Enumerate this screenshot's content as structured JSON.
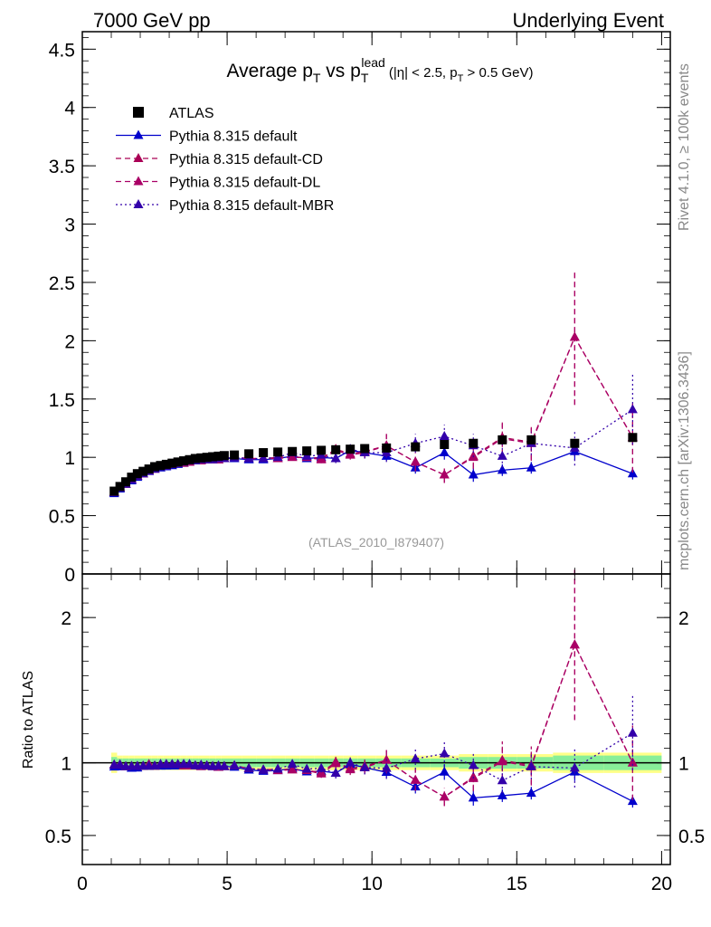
{
  "header": {
    "left": "7000 GeV pp",
    "right": "Underlying Event"
  },
  "title": {
    "prefix": "Average p",
    "sub1": "T",
    "vs": " vs p",
    "sub2": "T",
    "sup2": "lead",
    "cut_a": "(|η| < 2.5, p",
    "cut_sub": "T",
    "cut_b": " > 0.5 GeV)"
  },
  "side_right_top": "Rivet 4.1.0, ≥ 100k events",
  "side_right_bottom": "mcplots.cern.ch [arXiv:1306.3436]",
  "analysis_label": "(ATLAS_2010_I879407)",
  "ratio_ylabel": "Ratio to ATLAS",
  "colors": {
    "data": "#000000",
    "default": "#0000cc",
    "cd": "#aa0055",
    "dl": "#aa0066",
    "mbr": "#3300aa",
    "band_outer": "#ffff88",
    "band_inner": "#88ee99"
  },
  "chart_data": {
    "type": "scatter",
    "xlim": [
      0,
      20.3
    ],
    "main": {
      "ylim": [
        0,
        4.65
      ],
      "yticks": [
        0,
        0.5,
        1,
        1.5,
        2,
        2.5,
        3,
        3.5,
        4,
        4.5
      ],
      "ytick_labels": [
        "0",
        "0.5",
        "1",
        "1.5",
        "2",
        "2.5",
        "3",
        "3.5",
        "4",
        "4.5"
      ]
    },
    "ratio": {
      "ylim": [
        0.3,
        2.3
      ],
      "yticks": [
        0.5,
        1,
        2
      ],
      "ytick_labels": [
        "0.5",
        "1",
        "2"
      ]
    },
    "xticks": [
      0,
      5,
      10,
      15,
      20
    ],
    "xtick_labels": [
      "0",
      "5",
      "10",
      "15",
      "20"
    ],
    "legend": [
      "ATLAS",
      "Pythia 8.315 default",
      "Pythia 8.315 default-CD",
      "Pythia 8.315 default-DL",
      "Pythia 8.315 default-MBR"
    ],
    "x": [
      1.1,
      1.3,
      1.5,
      1.7,
      1.9,
      2.1,
      2.3,
      2.5,
      2.7,
      2.9,
      3.1,
      3.3,
      3.5,
      3.7,
      3.9,
      4.1,
      4.3,
      4.5,
      4.7,
      4.9,
      5.25,
      5.75,
      6.25,
      6.75,
      7.25,
      7.75,
      8.25,
      8.75,
      9.25,
      9.75,
      10.5,
      11.5,
      12.5,
      13.5,
      14.5,
      15.5,
      17.0,
      19.0
    ],
    "atlas": [
      0.71,
      0.75,
      0.79,
      0.83,
      0.86,
      0.88,
      0.9,
      0.92,
      0.93,
      0.94,
      0.95,
      0.96,
      0.97,
      0.98,
      0.99,
      0.995,
      1.0,
      1.005,
      1.01,
      1.015,
      1.02,
      1.03,
      1.04,
      1.045,
      1.05,
      1.055,
      1.06,
      1.065,
      1.07,
      1.075,
      1.08,
      1.09,
      1.11,
      1.12,
      1.15,
      1.15,
      1.12,
      1.17
    ],
    "series": [
      {
        "name": "Pythia 8.315 default",
        "key": "default",
        "style": "solid",
        "values": [
          0.69,
          0.73,
          0.77,
          0.8,
          0.83,
          0.86,
          0.88,
          0.9,
          0.91,
          0.92,
          0.93,
          0.94,
          0.95,
          0.96,
          0.97,
          0.97,
          0.98,
          0.98,
          0.98,
          0.99,
          0.99,
          0.98,
          0.98,
          0.99,
          1.01,
          0.99,
          1.0,
          0.99,
          1.06,
          1.04,
          1.01,
          0.91,
          1.04,
          0.85,
          0.89,
          0.91,
          1.05,
          0.86
        ],
        "errors": [
          0.01,
          0.01,
          0.01,
          0.01,
          0.01,
          0.01,
          0.01,
          0.01,
          0.01,
          0.01,
          0.01,
          0.01,
          0.01,
          0.01,
          0.01,
          0.01,
          0.01,
          0.01,
          0.01,
          0.01,
          0.01,
          0.01,
          0.01,
          0.01,
          0.02,
          0.02,
          0.02,
          0.03,
          0.03,
          0.03,
          0.04,
          0.05,
          0.06,
          0.06,
          0.05,
          0.05,
          0.07,
          0.05
        ]
      },
      {
        "name": "Pythia 8.315 default-CD",
        "key": "cd",
        "style": "dashed",
        "values": [
          0.7,
          0.74,
          0.77,
          0.81,
          0.84,
          0.86,
          0.89,
          0.9,
          0.92,
          0.93,
          0.94,
          0.95,
          0.95,
          0.96,
          0.97,
          0.98,
          0.98,
          0.98,
          0.98,
          0.99,
          1.0,
          0.99,
          0.99,
          1.0,
          1.0,
          1.0,
          0.99,
          1.07,
          1.03,
          1.05,
          1.1,
          0.96,
          0.85,
          1.01,
          1.17,
          1.13,
          2.03,
          1.17
        ],
        "errors": [
          0.01,
          0.01,
          0.01,
          0.01,
          0.01,
          0.01,
          0.01,
          0.01,
          0.01,
          0.01,
          0.01,
          0.01,
          0.01,
          0.01,
          0.01,
          0.01,
          0.01,
          0.01,
          0.01,
          0.01,
          0.01,
          0.01,
          0.01,
          0.02,
          0.02,
          0.02,
          0.03,
          0.04,
          0.04,
          0.05,
          0.1,
          0.08,
          0.07,
          0.1,
          0.15,
          0.15,
          0.58,
          0.3
        ]
      },
      {
        "name": "Pythia 8.315 default-DL",
        "key": "dl",
        "style": "dashed",
        "values": [
          0.7,
          0.74,
          0.77,
          0.81,
          0.84,
          0.86,
          0.89,
          0.9,
          0.92,
          0.93,
          0.94,
          0.95,
          0.96,
          0.96,
          0.97,
          0.97,
          0.98,
          0.98,
          0.98,
          0.99,
          1.0,
          0.99,
          0.99,
          0.99,
          1.0,
          1.0,
          0.98,
          1.06,
          1.02,
          1.04,
          1.1,
          0.96,
          0.85,
          1.0,
          1.16,
          1.12,
          2.03,
          1.17
        ],
        "errors": [
          0.01,
          0.01,
          0.01,
          0.01,
          0.01,
          0.01,
          0.01,
          0.01,
          0.01,
          0.01,
          0.01,
          0.01,
          0.01,
          0.01,
          0.01,
          0.01,
          0.01,
          0.01,
          0.01,
          0.01,
          0.01,
          0.01,
          0.01,
          0.02,
          0.02,
          0.02,
          0.03,
          0.04,
          0.04,
          0.05,
          0.1,
          0.08,
          0.07,
          0.1,
          0.15,
          0.15,
          0.58,
          0.3
        ]
      },
      {
        "name": "Pythia 8.315 default-MBR",
        "key": "mbr",
        "style": "dotted",
        "values": [
          0.7,
          0.74,
          0.77,
          0.81,
          0.84,
          0.86,
          0.88,
          0.9,
          0.92,
          0.93,
          0.94,
          0.95,
          0.96,
          0.97,
          0.97,
          0.98,
          0.98,
          0.98,
          0.99,
          0.99,
          1.0,
          0.99,
          0.99,
          1.0,
          1.04,
          1.01,
          1.02,
          0.99,
          1.07,
          1.04,
          1.04,
          1.12,
          1.18,
          1.1,
          1.01,
          1.12,
          1.08,
          1.41
        ],
        "errors": [
          0.01,
          0.01,
          0.01,
          0.01,
          0.01,
          0.01,
          0.01,
          0.01,
          0.01,
          0.01,
          0.01,
          0.01,
          0.01,
          0.01,
          0.01,
          0.01,
          0.01,
          0.01,
          0.01,
          0.01,
          0.01,
          0.01,
          0.01,
          0.02,
          0.02,
          0.02,
          0.03,
          0.04,
          0.04,
          0.05,
          0.08,
          0.08,
          0.1,
          0.1,
          0.1,
          0.1,
          0.15,
          0.3
        ]
      }
    ],
    "band_inner_frac": [
      0.04,
      0.03,
      0.03,
      0.03,
      0.03,
      0.03,
      0.03,
      0.03,
      0.03,
      0.03,
      0.03,
      0.03,
      0.03,
      0.03,
      0.03,
      0.03,
      0.03,
      0.03,
      0.03,
      0.03,
      0.03,
      0.03,
      0.03,
      0.03,
      0.03,
      0.03,
      0.03,
      0.03,
      0.03,
      0.03,
      0.03,
      0.03,
      0.03,
      0.04,
      0.04,
      0.04,
      0.05,
      0.05
    ],
    "band_outer_frac": [
      0.07,
      0.05,
      0.05,
      0.05,
      0.05,
      0.05,
      0.05,
      0.05,
      0.05,
      0.05,
      0.05,
      0.05,
      0.05,
      0.05,
      0.05,
      0.05,
      0.05,
      0.05,
      0.05,
      0.05,
      0.05,
      0.05,
      0.05,
      0.05,
      0.05,
      0.05,
      0.05,
      0.05,
      0.05,
      0.05,
      0.05,
      0.05,
      0.05,
      0.06,
      0.06,
      0.06,
      0.07,
      0.07
    ]
  }
}
